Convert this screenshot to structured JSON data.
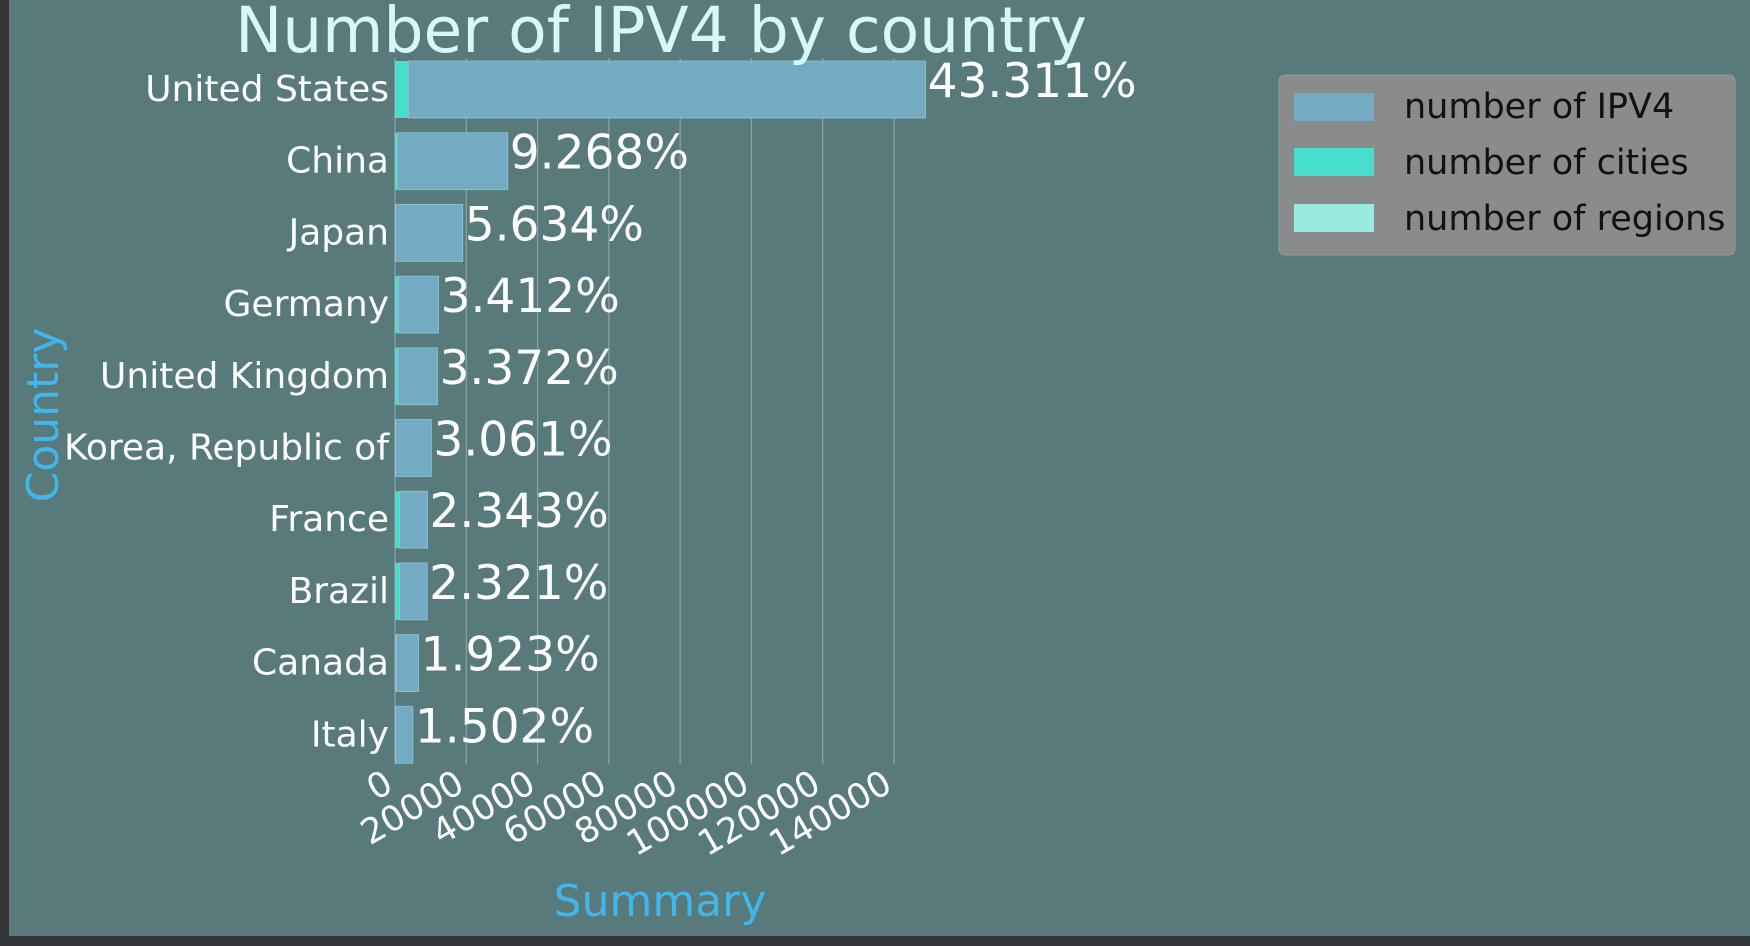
{
  "colors": {
    "background": "#587a7a",
    "outer_background": "#333539",
    "ipv4": "#72abc2",
    "cities": "#46dfce",
    "regions": "#98ebe0",
    "title": "#d6f9f8",
    "axis_label": "#41b6ec",
    "text": "#ffffff",
    "grid": "#8ea4a8",
    "legend_bg": "#8a8b8c"
  },
  "chart_data": {
    "type": "bar",
    "orientation": "horizontal",
    "stacked": true,
    "title": "Number of IPV4 by country",
    "xlabel": "Summary",
    "ylabel": "Country",
    "xlim": [
      0,
      165000
    ],
    "xticks": [
      "0",
      "20000",
      "40000",
      "60000",
      "80000",
      "100000",
      "120000",
      "140000"
    ],
    "grid": "vertical",
    "legend_position": "top-right",
    "categories": [
      "United States",
      "China",
      "Japan",
      "Germany",
      "United Kingdom",
      "Korea, Republic of",
      "France",
      "Brazil",
      "Canada",
      "Italy"
    ],
    "series": [
      {
        "name": "number of IPV4",
        "values": [
          145100,
          31000,
          18800,
          11300,
          11100,
          10000,
          7800,
          7700,
          6200,
          4800
        ]
      },
      {
        "name": "number of cities",
        "values": [
          3700,
          600,
          150,
          900,
          800,
          200,
          1300,
          1300,
          400,
          200
        ]
      },
      {
        "name": "number of regions",
        "values": [
          60,
          40,
          50,
          30,
          30,
          20,
          30,
          30,
          15,
          20
        ]
      }
    ],
    "percent_labels": [
      "43.311%",
      "9.268%",
      "5.634%",
      "3.412%",
      "3.372%",
      "3.061%",
      "2.343%",
      "2.321%",
      "1.923%",
      "1.502%"
    ]
  }
}
